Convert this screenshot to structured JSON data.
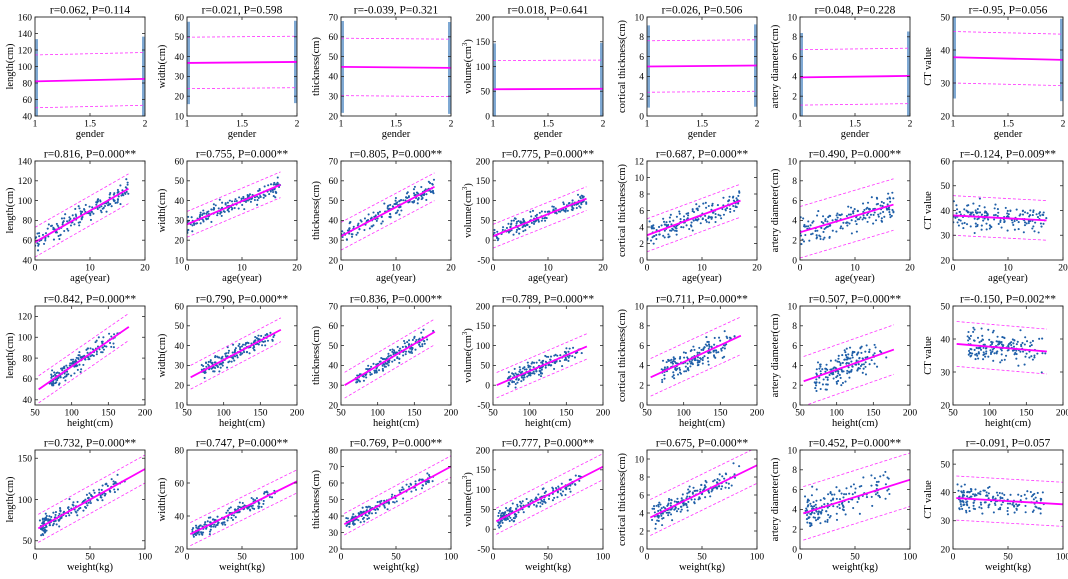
{
  "chart_data": {
    "type": "scatter",
    "layout": "4 rows x 7 columns grid of scatter plots with linear fit (solid) and prediction bands (dashed)",
    "colors": {
      "points": "#1f5fa8",
      "fit": "#ff00ff",
      "band": "#ff33ff",
      "axis": "#262626"
    },
    "columns": [
      {
        "ylabel": "length(cm)",
        "ylabel_sup": ""
      },
      {
        "ylabel": "width(cm)",
        "ylabel_sup": ""
      },
      {
        "ylabel": "thickness(cm)",
        "ylabel_sup": ""
      },
      {
        "ylabel": "volume(cm",
        "ylabel_sup": "3"
      },
      {
        "ylabel": "cortical thickness(cm)",
        "ylabel_sup": ""
      },
      {
        "ylabel": "artery diameter(cm)",
        "ylabel_sup": ""
      },
      {
        "ylabel": "CT value",
        "ylabel_sup": ""
      }
    ],
    "rows": [
      {
        "xlabel": "gender",
        "xlim": [
          1,
          2
        ],
        "xticks": [
          1,
          1.5,
          2
        ],
        "xtick_labels": [
          "1",
          "1.5",
          "2"
        ],
        "x_kind": "gender"
      },
      {
        "xlabel": "age(year)",
        "xlim": [
          0,
          20
        ],
        "xticks": [
          0,
          10,
          20
        ],
        "xtick_labels": [
          "0",
          "10",
          "20"
        ],
        "x_kind": "age"
      },
      {
        "xlabel": "height(cm)",
        "xlim": [
          50,
          200
        ],
        "xticks": [
          50,
          100,
          150,
          200
        ],
        "xtick_labels": [
          "50",
          "100",
          "150",
          "200"
        ],
        "x_kind": "height"
      },
      {
        "xlabel": "weight(kg)",
        "xlim": [
          0,
          100
        ],
        "xticks": [
          0,
          50,
          100
        ],
        "xtick_labels": [
          "0",
          "50",
          "100"
        ],
        "x_kind": "weight"
      }
    ],
    "panels": [
      [
        {
          "title": "r=0.062, P=0.114",
          "ylim": [
            40,
            160
          ],
          "yticks": [
            40,
            60,
            80,
            100,
            120,
            140,
            160
          ],
          "fit": [
            [
              1,
              82
            ],
            [
              2,
              85
            ]
          ],
          "band_offset": 32
        },
        {
          "title": "r=0.021, P=0.598",
          "ylim": [
            10,
            60
          ],
          "yticks": [
            10,
            20,
            30,
            40,
            50,
            60
          ],
          "fit": [
            [
              1,
              36.8
            ],
            [
              2,
              37.3
            ]
          ],
          "band_offset": 13
        },
        {
          "title": "r=-0.039, P=0.321",
          "ylim": [
            20,
            70
          ],
          "yticks": [
            20,
            30,
            40,
            50,
            60,
            70
          ],
          "fit": [
            [
              1,
              44.8
            ],
            [
              2,
              44.3
            ]
          ],
          "band_offset": 14.5
        },
        {
          "title": "r=0.018, P=0.641",
          "ylim": [
            0,
            200
          ],
          "yticks": [
            0,
            50,
            100,
            150,
            200
          ],
          "fit": [
            [
              1,
              54
            ],
            [
              2,
              55
            ]
          ],
          "band_offset": 58
        },
        {
          "title": "r=0.026, P=0.506",
          "ylim": [
            0,
            10
          ],
          "yticks": [
            0,
            2,
            4,
            6,
            8,
            10
          ],
          "fit": [
            [
              1,
              5.0
            ],
            [
              2,
              5.1
            ]
          ],
          "band_offset": 2.6
        },
        {
          "title": "r=0.048, P=0.228",
          "ylim": [
            0,
            10
          ],
          "yticks": [
            0,
            2,
            4,
            6,
            8,
            10
          ],
          "fit": [
            [
              1,
              3.9
            ],
            [
              2,
              4.05
            ]
          ],
          "band_offset": 2.8
        },
        {
          "title": "r=-0.95, P=0.056",
          "ylim": [
            20,
            50
          ],
          "yticks": [
            20,
            30,
            40,
            50
          ],
          "fit": [
            [
              1,
              37.8
            ],
            [
              2,
              37.0
            ]
          ],
          "band_offset": 7.8
        }
      ],
      [
        {
          "title": "r=0.816, P=0.000**",
          "ylim": [
            40,
            140
          ],
          "yticks": [
            40,
            60,
            80,
            100,
            120,
            140
          ],
          "fit": [
            [
              0,
              58
            ],
            [
              17,
              112
            ]
          ],
          "band_offset": 15
        },
        {
          "title": "r=0.755, P=0.000**",
          "ylim": [
            10,
            60
          ],
          "yticks": [
            10,
            20,
            30,
            40,
            50,
            60
          ],
          "fit": [
            [
              0,
              28
            ],
            [
              17,
              48
            ]
          ],
          "band_offset": 6.5
        },
        {
          "title": "r=0.805, P=0.000**",
          "ylim": [
            20,
            70
          ],
          "yticks": [
            20,
            30,
            40,
            50,
            60,
            70
          ],
          "fit": [
            [
              0,
              32
            ],
            [
              17,
              57
            ]
          ],
          "band_offset": 7
        },
        {
          "title": "r=0.775, P=0.000**",
          "ylim": [
            -50,
            200
          ],
          "yticks": [
            -50,
            0,
            50,
            100,
            150,
            200
          ],
          "fit": [
            [
              0,
              10
            ],
            [
              17,
              105
            ]
          ],
          "band_offset": 30
        },
        {
          "title": "r=0.687, P=0.000**",
          "ylim": [
            0,
            12
          ],
          "yticks": [
            0,
            2,
            4,
            6,
            8,
            10,
            12
          ],
          "fit": [
            [
              0,
              3.0
            ],
            [
              17,
              7.2
            ]
          ],
          "band_offset": 2.0
        },
        {
          "title": "r=0.490, P=0.000**",
          "ylim": [
            0,
            10
          ],
          "yticks": [
            0,
            2,
            4,
            6,
            8,
            10
          ],
          "fit": [
            [
              0,
              2.8
            ],
            [
              17,
              5.6
            ]
          ],
          "band_offset": 2.6
        },
        {
          "title": "r=-0.124, P=0.009**",
          "ylim": [
            20,
            60
          ],
          "yticks": [
            20,
            30,
            40,
            50,
            60
          ],
          "fit": [
            [
              0,
              38
            ],
            [
              17,
              36
            ]
          ],
          "band_offset": 8
        }
      ],
      [
        {
          "title": "r=0.842, P=0.000**",
          "ylim": [
            35,
            130
          ],
          "yticks": [
            40,
            60,
            80,
            100,
            120
          ],
          "fit": [
            [
              55,
              50
            ],
            [
              178,
              110
            ]
          ],
          "band_offset": 13
        },
        {
          "title": "r=0.790, P=0.000**",
          "ylim": [
            10,
            60
          ],
          "yticks": [
            10,
            20,
            30,
            40,
            50,
            60
          ],
          "fit": [
            [
              55,
              24
            ],
            [
              178,
              48
            ]
          ],
          "band_offset": 6
        },
        {
          "title": "r=0.836, P=0.000**",
          "ylim": [
            20,
            70
          ],
          "yticks": [
            20,
            30,
            40,
            50,
            60,
            70
          ],
          "fit": [
            [
              55,
              30
            ],
            [
              178,
              57
            ]
          ],
          "band_offset": 6.5
        },
        {
          "title": "r=0.789, P=0.000**",
          "ylim": [
            -50,
            200
          ],
          "yticks": [
            -50,
            0,
            50,
            100,
            150,
            200
          ],
          "fit": [
            [
              55,
              0
            ],
            [
              178,
              98
            ]
          ],
          "band_offset": 32
        },
        {
          "title": "r=0.711, P=0.000**",
          "ylim": [
            0,
            10
          ],
          "yticks": [
            0,
            2,
            4,
            6,
            8,
            10
          ],
          "fit": [
            [
              55,
              2.8
            ],
            [
              178,
              7.0
            ]
          ],
          "band_offset": 1.9
        },
        {
          "title": "r=0.507, P=0.000**",
          "ylim": [
            0,
            10
          ],
          "yticks": [
            0,
            2,
            4,
            6,
            8,
            10
          ],
          "fit": [
            [
              55,
              2.4
            ],
            [
              178,
              5.6
            ]
          ],
          "band_offset": 2.5
        },
        {
          "title": "r=-0.150, P=0.002**",
          "ylim": [
            20,
            50
          ],
          "yticks": [
            20,
            30,
            40,
            50
          ],
          "fit": [
            [
              55,
              38.5
            ],
            [
              178,
              36.2
            ]
          ],
          "band_offset": 6.8
        }
      ],
      [
        {
          "title": "r=0.732, P=0.000**",
          "ylim": [
            40,
            160
          ],
          "yticks": [
            50,
            100,
            150
          ],
          "fit": [
            [
              3,
              65
            ],
            [
              100,
              137
            ]
          ],
          "band_offset": 17
        },
        {
          "title": "r=0.747, P=0.000**",
          "ylim": [
            20,
            80
          ],
          "yticks": [
            20,
            40,
            60,
            80
          ],
          "fit": [
            [
              3,
              29
            ],
            [
              100,
              61
            ]
          ],
          "band_offset": 7
        },
        {
          "title": "r=0.769, P=0.000**",
          "ylim": [
            20,
            80
          ],
          "yticks": [
            20,
            30,
            40,
            50,
            60,
            70,
            80
          ],
          "fit": [
            [
              3,
              35
            ],
            [
              100,
              70
            ]
          ],
          "band_offset": 6.5
        },
        {
          "title": "r=0.777, P=0.000**",
          "ylim": [
            -50,
            200
          ],
          "yticks": [
            -50,
            0,
            50,
            100,
            150,
            200
          ],
          "fit": [
            [
              3,
              20
            ],
            [
              100,
              158
            ]
          ],
          "band_offset": 33
        },
        {
          "title": "r=0.675, P=0.000**",
          "ylim": [
            0,
            11
          ],
          "yticks": [
            0,
            2,
            4,
            6,
            8,
            10
          ],
          "fit": [
            [
              3,
              3.5
            ],
            [
              100,
              9.3
            ]
          ],
          "band_offset": 2.0
        },
        {
          "title": "r=0.452, P=0.000**",
          "ylim": [
            0,
            10
          ],
          "yticks": [
            0,
            2,
            4,
            6,
            8,
            10
          ],
          "fit": [
            [
              3,
              3.6
            ],
            [
              100,
              7.0
            ]
          ],
          "band_offset": 2.7
        },
        {
          "title": "r=-0.091, P=0.057",
          "ylim": [
            20,
            55
          ],
          "yticks": [
            20,
            30,
            40,
            50
          ],
          "fit": [
            [
              3,
              38
            ],
            [
              100,
              35.8
            ]
          ],
          "band_offset": 7.8
        }
      ]
    ]
  }
}
